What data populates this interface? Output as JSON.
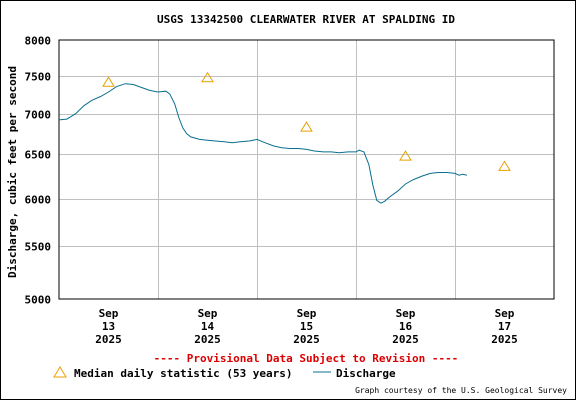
{
  "chart_data": {
    "type": "line",
    "title": "USGS 13342500 CLEARWATER RIVER AT SPALDING ID",
    "ylabel": "Discharge, cubic feet per second",
    "y_scale": "log",
    "ylim": [
      5000,
      8000
    ],
    "y_ticks": [
      5000,
      5500,
      6000,
      6500,
      7000,
      7500,
      8000
    ],
    "y_tick_labels": [
      "5000",
      "5500",
      "6000",
      "6500",
      "7000",
      "7500",
      "8000"
    ],
    "xlim": [
      12.5,
      17.5
    ],
    "x_ticks": [
      {
        "x": 13,
        "month": "Sep",
        "day": "13",
        "year": "2025"
      },
      {
        "x": 14,
        "month": "Sep",
        "day": "14",
        "year": "2025"
      },
      {
        "x": 15,
        "month": "Sep",
        "day": "15",
        "year": "2025"
      },
      {
        "x": 16,
        "month": "Sep",
        "day": "16",
        "year": "2025"
      },
      {
        "x": 17,
        "month": "Sep",
        "day": "17",
        "year": "2025"
      }
    ],
    "grid": true,
    "series": [
      {
        "name": "Median daily statistic (53 years)",
        "kind": "marker",
        "color": "#e8a000",
        "x": [
          13,
          14,
          15,
          16,
          17
        ],
        "y": [
          7410,
          7470,
          6830,
          6480,
          6360
        ]
      },
      {
        "name": "Discharge",
        "kind": "line",
        "color": "#0a6f8f",
        "x": [
          12.5,
          12.58,
          12.67,
          12.75,
          12.83,
          12.92,
          13.0,
          13.08,
          13.17,
          13.25,
          13.33,
          13.42,
          13.5,
          13.58,
          13.62,
          13.67,
          13.71,
          13.75,
          13.79,
          13.83,
          13.92,
          14.0,
          14.08,
          14.17,
          14.25,
          14.33,
          14.42,
          14.5,
          14.58,
          14.67,
          14.75,
          14.83,
          14.92,
          15.0,
          15.08,
          15.17,
          15.25,
          15.33,
          15.42,
          15.5,
          15.53,
          15.58,
          15.63,
          15.67,
          15.71,
          15.75,
          15.79,
          15.83,
          15.92,
          16.0,
          16.08,
          16.17,
          16.25,
          16.33,
          16.42,
          16.5,
          16.54,
          16.58,
          16.62
        ],
        "y": [
          6920,
          6930,
          7000,
          7100,
          7170,
          7220,
          7280,
          7350,
          7390,
          7380,
          7340,
          7300,
          7280,
          7290,
          7250,
          7120,
          6950,
          6820,
          6750,
          6710,
          6680,
          6670,
          6660,
          6650,
          6640,
          6650,
          6660,
          6680,
          6640,
          6600,
          6580,
          6570,
          6570,
          6560,
          6540,
          6530,
          6530,
          6520,
          6530,
          6530,
          6550,
          6530,
          6380,
          6150,
          5980,
          5950,
          5970,
          6010,
          6080,
          6160,
          6210,
          6250,
          6280,
          6290,
          6290,
          6280,
          6260,
          6270,
          6260
        ]
      }
    ],
    "annotations": [
      {
        "text": "---- Provisional Data Subject to Revision ----",
        "color": "#dd0000"
      },
      {
        "text": "Graph courtesy of the U.S. Geological Survey"
      }
    ]
  },
  "colors": {
    "median_marker": "#e8a000",
    "discharge_line": "#0a6f8f",
    "grid": "#c0c0c0",
    "provisional_text": "#dd0000"
  }
}
